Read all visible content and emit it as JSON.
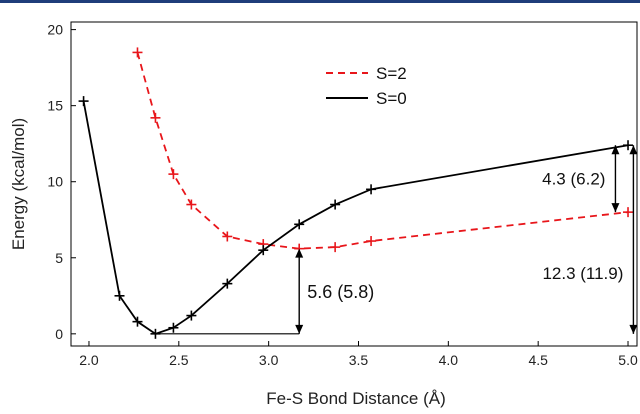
{
  "colors": {
    "top_rule": "#1f3d7a",
    "s2": "#e8161b",
    "s0": "#000000",
    "axis": "#000000"
  },
  "chart_data": {
    "type": "line",
    "xlabel": "Fe-S Bond Distance (Å)",
    "ylabel": "Energy (kcal/mol)",
    "xlim": [
      1.9,
      5.05
    ],
    "ylim": [
      -0.8,
      20.5
    ],
    "xticks": [
      2.0,
      2.5,
      3.0,
      3.5,
      4.0,
      4.5,
      5.0
    ],
    "xtick_labels": [
      "2.0",
      "2.5",
      "3.0",
      "3.5",
      "4.0",
      "4.5",
      "5.0"
    ],
    "yticks": [
      0,
      5,
      10,
      15,
      20
    ],
    "ytick_labels": [
      "0",
      "5",
      "10",
      "15",
      "20"
    ],
    "legend_position": "top-center",
    "series": [
      {
        "name": "S=2",
        "style": "dashed",
        "color": "#e8161b",
        "x": [
          2.27,
          2.37,
          2.47,
          2.57,
          2.77,
          2.97,
          3.17,
          3.37,
          3.57,
          5.0
        ],
        "y": [
          18.5,
          14.2,
          10.5,
          8.5,
          6.4,
          5.9,
          5.6,
          5.7,
          6.1,
          8.0
        ]
      },
      {
        "name": "S=0",
        "style": "solid",
        "color": "#000000",
        "x": [
          1.97,
          2.17,
          2.27,
          2.37,
          2.47,
          2.57,
          2.77,
          2.97,
          3.17,
          3.37,
          3.57,
          5.0
        ],
        "y": [
          15.3,
          2.5,
          0.8,
          0.0,
          0.4,
          1.2,
          3.3,
          5.5,
          7.2,
          8.5,
          9.5,
          12.4
        ]
      }
    ],
    "annotations": [
      {
        "text": "5.6 (5.8)",
        "x": 3.17,
        "y_from": 0.0,
        "y_to": 5.6,
        "ref_x_from": 2.37
      },
      {
        "text": "4.3 (6.2)",
        "x": 4.93,
        "y_from": 8.0,
        "y_to": 12.4
      },
      {
        "text": "12.3 (11.9)",
        "x": 5.03,
        "y_from": 0.0,
        "y_to": 12.4
      }
    ]
  }
}
